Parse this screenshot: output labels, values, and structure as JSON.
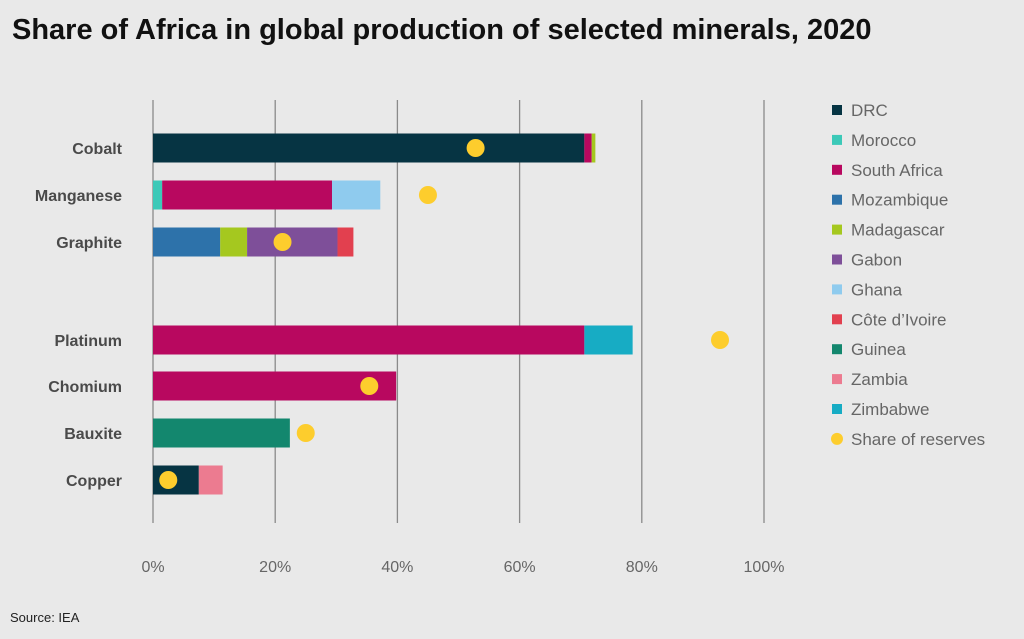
{
  "title": "Share of Africa in global production of selected minerals, 2020",
  "source": "Source: IEA",
  "colors": {
    "DRC": "#063443",
    "Morocco": "#3cc9b8",
    "South Africa": "#b8085f",
    "Mozambique": "#2d72aa",
    "Madagascar": "#a5c81f",
    "Gabon": "#7e4f99",
    "Ghana": "#8fcbee",
    "Côte d’Ivoire": "#e2404f",
    "Guinea": "#13876e",
    "Zambia": "#ec7b90",
    "Zimbabwe": "#17acc4",
    "Share of reserves": "#fdcd2d"
  },
  "chart_data": {
    "type": "bar",
    "orientation": "horizontal",
    "stacked": true,
    "title": "Share of Africa in global production of selected minerals, 2020",
    "xlim": [
      0,
      100
    ],
    "x_ticks": [
      "0%",
      "20%",
      "40%",
      "60%",
      "80%",
      "100%"
    ],
    "grid": true,
    "legend_position": "right",
    "legend": [
      "DRC",
      "Morocco",
      "South Africa",
      "Mozambique",
      "Madagascar",
      "Gabon",
      "Ghana",
      "Côte d’Ivoire",
      "Guinea",
      "Zambia",
      "Zimbabwe",
      "Share of reserves"
    ],
    "groups": [
      {
        "categories": [
          {
            "name": "Cobalt",
            "segments": [
              {
                "country": "DRC",
                "value": 70.6
              },
              {
                "country": "South Africa",
                "value": 1.2
              },
              {
                "country": "Madagascar",
                "value": 0.6
              }
            ],
            "reserves": 52.8
          },
          {
            "name": "Manganese",
            "segments": [
              {
                "country": "Morocco",
                "value": 1.5
              },
              {
                "country": "South Africa",
                "value": 27.8
              },
              {
                "country": "Ghana",
                "value": 7.9
              }
            ],
            "reserves": 45.0
          },
          {
            "name": "Graphite",
            "segments": [
              {
                "country": "Mozambique",
                "value": 11.0
              },
              {
                "country": "Madagascar",
                "value": 4.4
              },
              {
                "country": "Gabon",
                "value": 14.8
              },
              {
                "country": "Côte d’Ivoire",
                "value": 2.6
              }
            ],
            "reserves": 21.2
          }
        ]
      },
      {
        "categories": [
          {
            "name": "Platinum",
            "segments": [
              {
                "country": "South Africa",
                "value": 70.6
              },
              {
                "country": "Zimbabwe",
                "value": 7.9
              }
            ],
            "reserves": 92.8
          },
          {
            "name": "Chomium",
            "segments": [
              {
                "country": "South Africa",
                "value": 39.8
              }
            ],
            "reserves": 35.4
          },
          {
            "name": "Bauxite",
            "segments": [
              {
                "country": "Guinea",
                "value": 22.4
              }
            ],
            "reserves": 25.0
          },
          {
            "name": "Copper",
            "segments": [
              {
                "country": "DRC",
                "value": 7.5
              },
              {
                "country": "Zambia",
                "value": 3.9
              }
            ],
            "reserves": 2.5
          }
        ]
      }
    ]
  }
}
